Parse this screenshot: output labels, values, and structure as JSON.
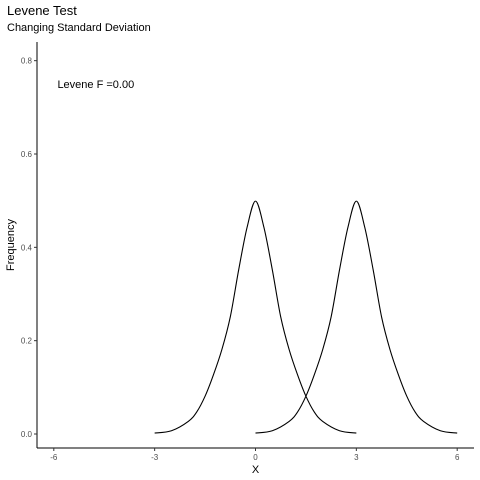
{
  "chart_data": {
    "type": "line",
    "title": "Levene Test",
    "subtitle": "Changing Standard Deviation",
    "xlabel": "X",
    "ylabel": "Frequency",
    "xlim": [
      -6.5,
      6.5
    ],
    "ylim": [
      -0.03,
      0.84
    ],
    "x_ticks": [
      -6,
      -3,
      0,
      3,
      6
    ],
    "x_tick_labels": [
      "-6",
      "-3",
      "0",
      "3",
      "6"
    ],
    "y_ticks": [
      0.0,
      0.2,
      0.4,
      0.6,
      0.8
    ],
    "y_tick_labels": [
      "0.0",
      "0.2",
      "0.4",
      "0.6",
      "0.8"
    ],
    "grid": false,
    "series": [
      {
        "x": [
          -3.0,
          -2.5,
          -2.0,
          -1.75,
          -1.5,
          -1.25,
          -1.0,
          -0.75,
          -0.5,
          -0.25,
          0.0,
          0.25,
          0.5,
          0.75,
          1.0,
          1.25,
          1.5,
          1.75,
          2.0,
          2.5,
          3.0
        ],
        "y": [
          0.002,
          0.007,
          0.027,
          0.047,
          0.081,
          0.127,
          0.181,
          0.251,
          0.352,
          0.443,
          0.499,
          0.443,
          0.352,
          0.251,
          0.181,
          0.127,
          0.081,
          0.047,
          0.027,
          0.007,
          0.002
        ],
        "color": "#000000"
      },
      {
        "x": [
          0.0,
          0.5,
          1.0,
          1.25,
          1.5,
          1.75,
          2.0,
          2.25,
          2.5,
          2.75,
          3.0,
          3.25,
          3.5,
          3.75,
          4.0,
          4.25,
          4.5,
          4.75,
          5.0,
          5.5,
          6.0
        ],
        "y": [
          0.002,
          0.007,
          0.027,
          0.047,
          0.081,
          0.127,
          0.181,
          0.251,
          0.352,
          0.443,
          0.499,
          0.443,
          0.352,
          0.251,
          0.181,
          0.127,
          0.081,
          0.047,
          0.027,
          0.007,
          0.002
        ],
        "color": "#000000"
      }
    ],
    "annotations": [
      {
        "text": "Levene F =0.00",
        "x": -4.75,
        "y": 0.75
      }
    ]
  }
}
